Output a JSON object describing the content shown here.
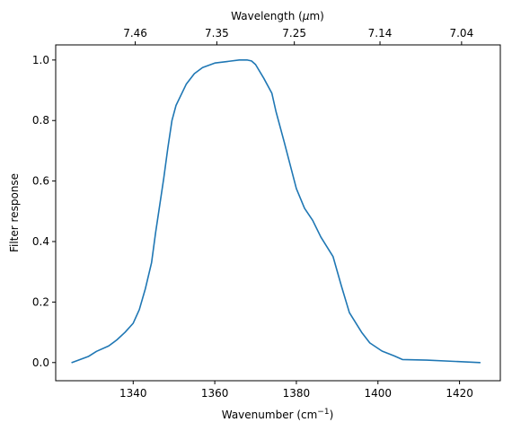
{
  "chart_data": {
    "type": "line",
    "xlabel": "Wavenumber (cm",
    "xlabel_superscript": "−1",
    "xlabel_suffix": ")",
    "ylabel": "Filter response",
    "top_xlabel": "Wavelength (",
    "top_xlabel_mu": "μ",
    "top_xlabel_suffix": "m)",
    "xlim": [
      1321,
      1430
    ],
    "ylim": [
      -0.06,
      1.05
    ],
    "x_ticks": [
      1340,
      1360,
      1380,
      1400,
      1420
    ],
    "x_tick_labels": [
      "1340",
      "1360",
      "1380",
      "1400",
      "1420"
    ],
    "y_ticks": [
      0.0,
      0.2,
      0.4,
      0.6,
      0.8,
      1.0
    ],
    "y_tick_labels": [
      "0.0",
      "0.2",
      "0.4",
      "0.6",
      "0.8",
      "1.0"
    ],
    "top_ticks": [
      {
        "label": "7.46",
        "x": 1340.5
      },
      {
        "label": "7.35",
        "x": 1360.5
      },
      {
        "label": "7.25",
        "x": 1379.5
      },
      {
        "label": "7.14",
        "x": 1400.5
      },
      {
        "label": "7.04",
        "x": 1420.5
      }
    ],
    "grid": false,
    "series": [
      {
        "color": "#1f77b4",
        "x": [
          1325,
          1329,
          1331,
          1334,
          1336,
          1338,
          1340,
          1341.5,
          1343,
          1344.5,
          1345.5,
          1346.5,
          1347.5,
          1348.5,
          1349.5,
          1350.5,
          1353,
          1355,
          1357,
          1360,
          1363,
          1366,
          1368,
          1369,
          1370,
          1372,
          1374,
          1375,
          1377,
          1380,
          1382,
          1384,
          1386,
          1389,
          1391,
          1393,
          1396,
          1398,
          1401,
          1404,
          1406,
          1412,
          1425
        ],
        "y": [
          0.0,
          0.02,
          0.037,
          0.055,
          0.075,
          0.1,
          0.13,
          0.175,
          0.245,
          0.33,
          0.43,
          0.52,
          0.61,
          0.71,
          0.8,
          0.85,
          0.92,
          0.955,
          0.975,
          0.99,
          0.995,
          1.0,
          1.0,
          0.997,
          0.985,
          0.94,
          0.89,
          0.83,
          0.73,
          0.575,
          0.51,
          0.47,
          0.415,
          0.35,
          0.255,
          0.165,
          0.1,
          0.065,
          0.038,
          0.022,
          0.01,
          0.008,
          0.0
        ]
      }
    ]
  }
}
